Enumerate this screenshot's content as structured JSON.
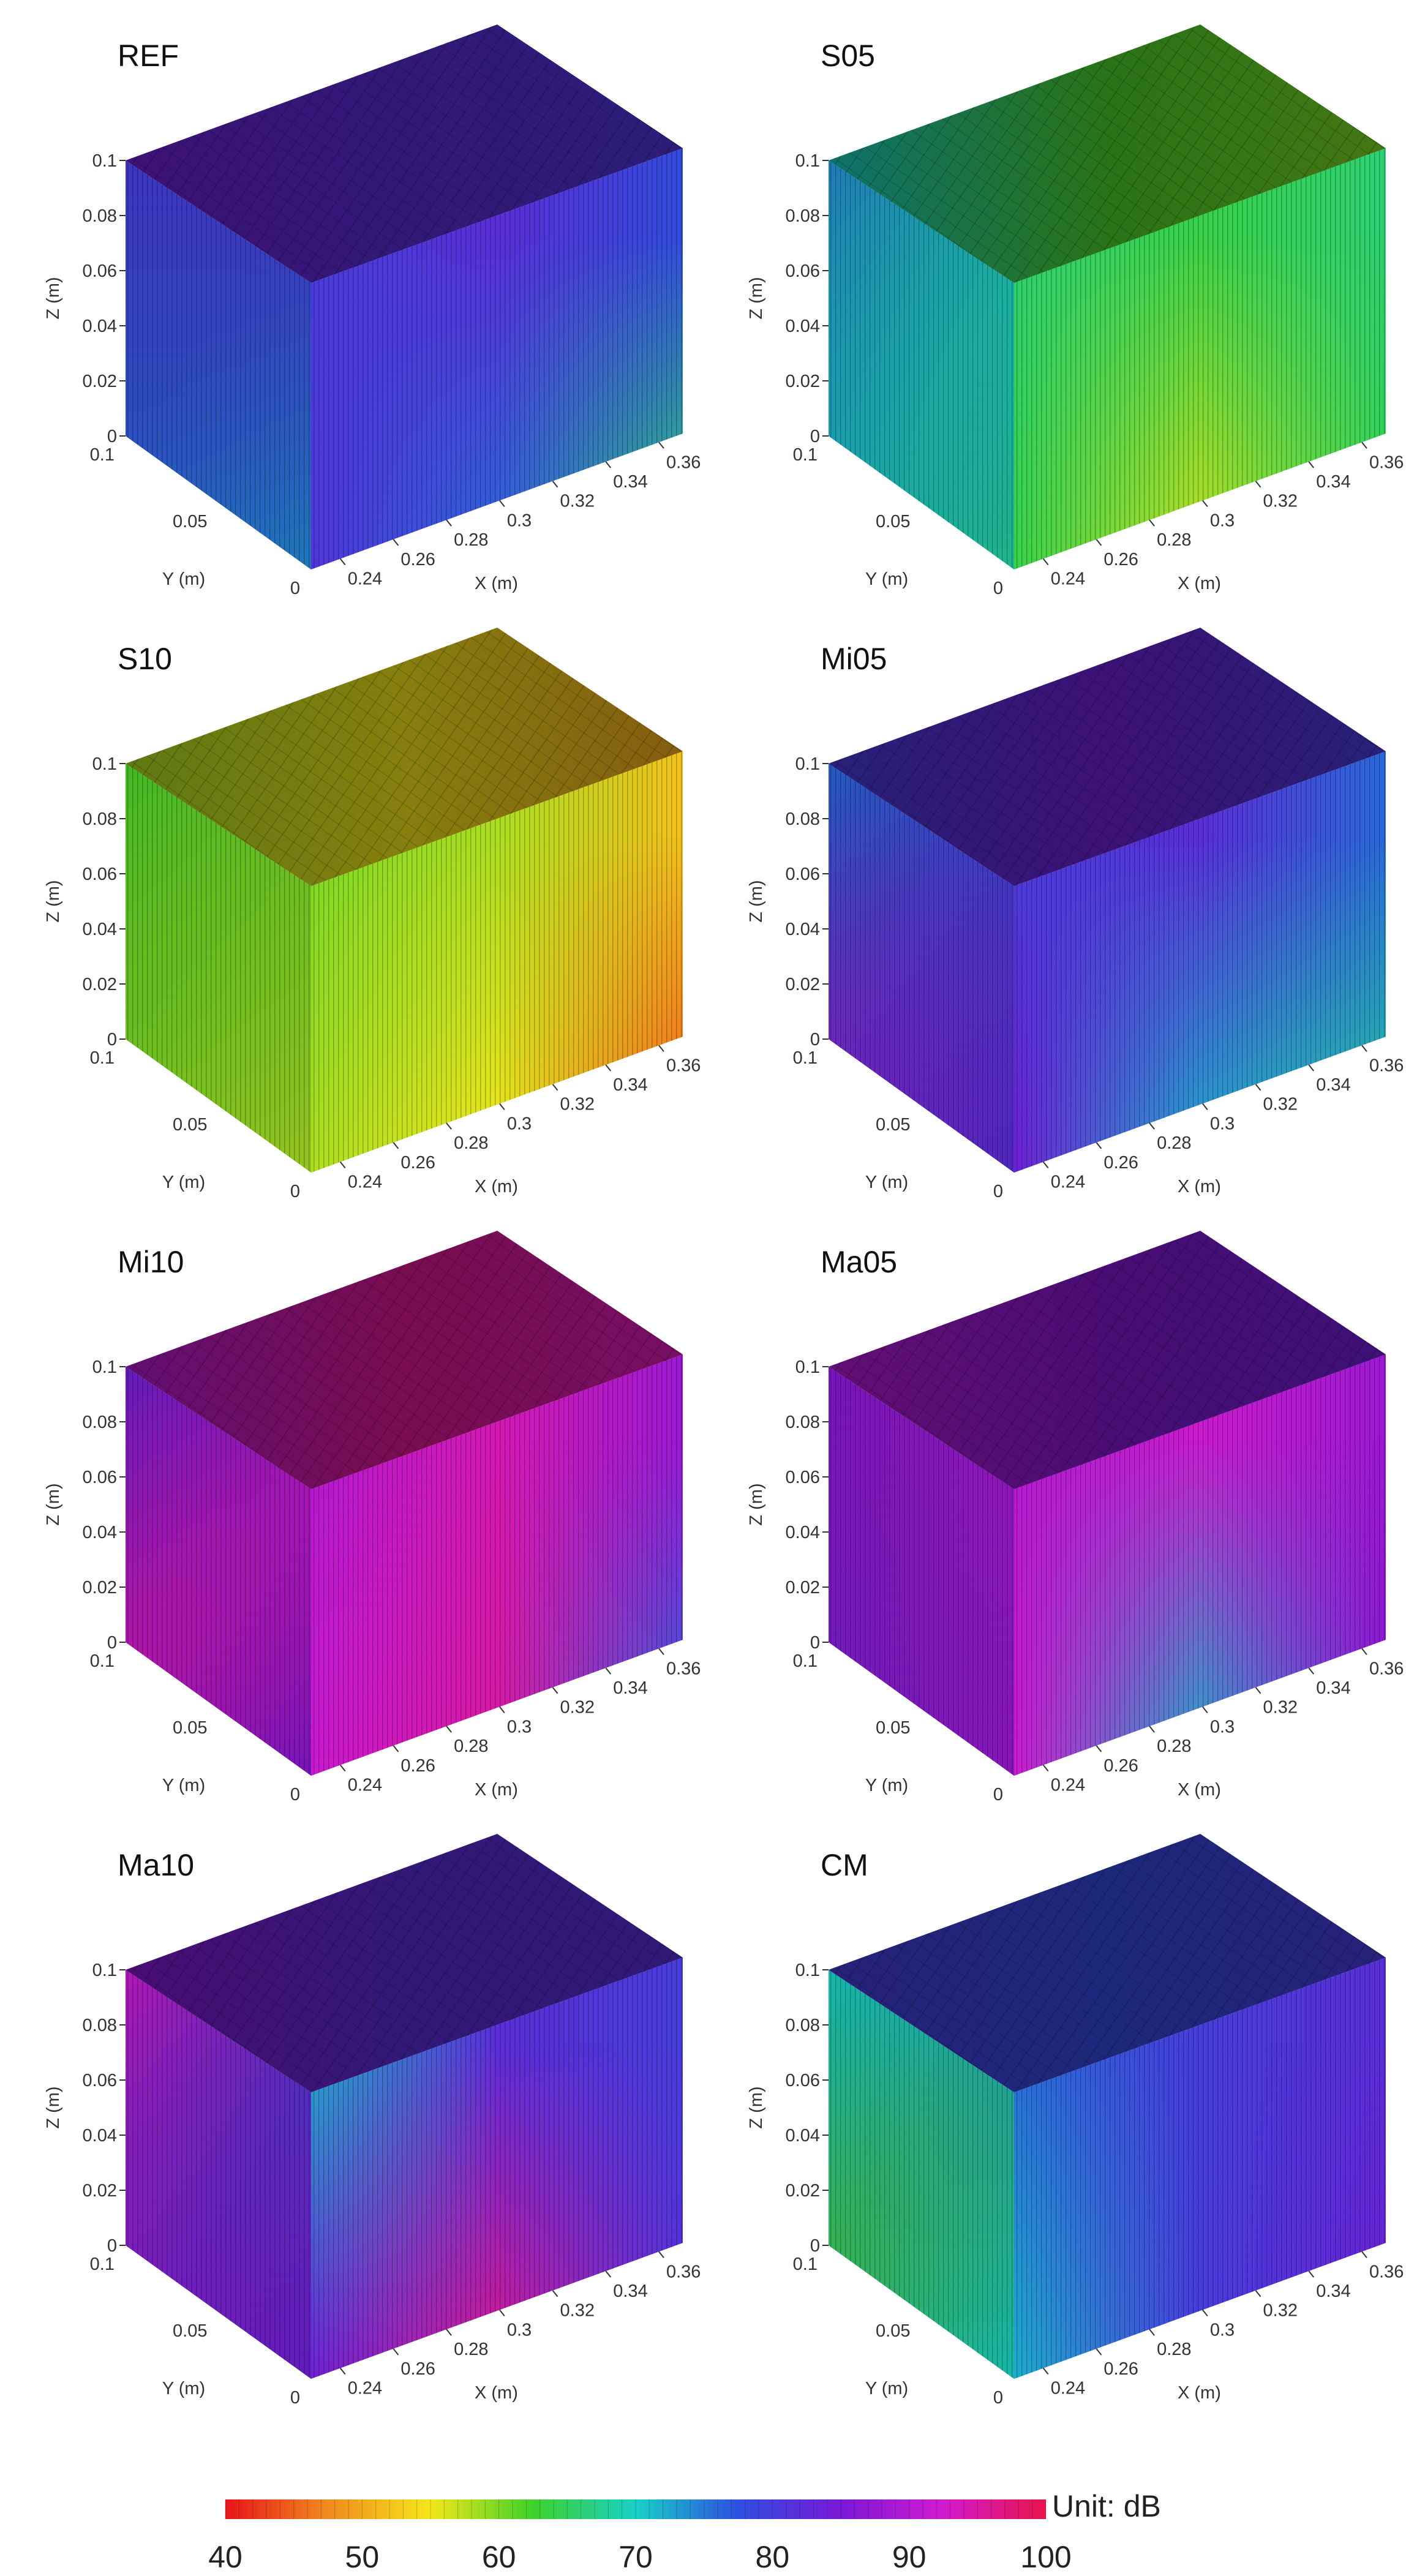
{
  "chart_data": {
    "type": "3d-surface",
    "axes": {
      "x": {
        "label": "X (m)",
        "ticks": [
          "0.24",
          "0.26",
          "0.28",
          "0.3",
          "0.32",
          "0.34",
          "0.36"
        ],
        "range": [
          0.23,
          0.37
        ]
      },
      "y": {
        "label": "Y (m)",
        "ticks": [
          "0",
          "0.05",
          "0.1"
        ],
        "range": [
          0,
          0.1
        ]
      },
      "z": {
        "label": "Z (m)",
        "ticks": [
          "0",
          "0.02",
          "0.04",
          "0.06",
          "0.08",
          "0.1"
        ],
        "range": [
          0,
          0.1
        ]
      }
    },
    "colorbar": {
      "unit": "Unit: dB",
      "ticks": [
        "40",
        "50",
        "60",
        "70",
        "80",
        "90",
        "100"
      ],
      "range": [
        40,
        100
      ],
      "colors": [
        "#e8141a",
        "#f28a1e",
        "#f4e61a",
        "#3fd12a",
        "#18d0c6",
        "#2d4fe0",
        "#7a18d6",
        "#d21ad0",
        "#e8144a"
      ]
    },
    "panels": [
      {
        "title": "REF",
        "x_tick_labels": [
          "0.24",
          "0.26",
          "0.28",
          "0.3",
          "0.32",
          "0.34",
          "0.36"
        ],
        "top": [
          84,
          82,
          81
        ],
        "front_top": [
          80,
          82,
          78
        ],
        "front_bottom": [
          81,
          76,
          66
        ],
        "side_top": [
          80,
          80
        ],
        "side_bottom": [
          76,
          74
        ]
      },
      {
        "title": "S05",
        "x_tick_labels": [
          "0.24",
          "0.26",
          "0.28",
          "0.3",
          "0.32",
          "0.34",
          "0.36"
        ],
        "top": [
          70,
          62,
          60
        ],
        "front_top": [
          66,
          64,
          66
        ],
        "front_bottom": [
          64,
          57,
          64
        ],
        "side_top": [
          74,
          69
        ],
        "side_bottom": [
          72,
          68
        ]
      },
      {
        "title": "S10",
        "x_tick_labels": [
          "0.24",
          "0.26",
          "0.28",
          "0.3",
          "0.32",
          "0.34",
          "0.36"
        ],
        "top": [
          58,
          55,
          50
        ],
        "front_top": [
          60,
          58,
          52
        ],
        "front_bottom": [
          58,
          55,
          44
        ],
        "side_top": [
          62,
          60
        ],
        "side_bottom": [
          60,
          58
        ]
      },
      {
        "title": "Mi05",
        "x_tick_labels": [
          "0.24",
          "0.26",
          "0.28",
          "0.3",
          "0.32",
          "0.34",
          "0.36"
        ],
        "top": [
          80,
          84,
          80
        ],
        "front_top": [
          80,
          82,
          76
        ],
        "front_bottom": [
          84,
          72,
          68
        ],
        "side_top": [
          76,
          78
        ],
        "side_bottom": [
          88,
          82
        ]
      },
      {
        "title": "Mi10",
        "x_tick_labels": [
          "0.24",
          "0.26",
          "0.28",
          "0.3",
          "0.32",
          "0.34",
          "0.36"
        ],
        "top": [
          90,
          96,
          94
        ],
        "front_top": [
          90,
          94,
          88
        ],
        "front_bottom": [
          92,
          95,
          76
        ],
        "side_top": [
          84,
          90
        ],
        "side_bottom": [
          94,
          86
        ]
      },
      {
        "title": "Ma05",
        "x_tick_labels": [
          "0.24",
          "0.26",
          "0.28",
          "0.3",
          "0.32",
          "0.34",
          "0.36"
        ],
        "top": [
          90,
          86,
          84
        ],
        "front_top": [
          90,
          92,
          88
        ],
        "front_bottom": [
          92,
          72,
          86
        ],
        "side_top": [
          86,
          90
        ],
        "side_bottom": [
          84,
          88
        ]
      },
      {
        "title": "Ma10",
        "x_tick_labels": [
          "0.24",
          "0.26",
          "0.28",
          "0.3",
          "0.32",
          "0.34",
          "0.36"
        ],
        "top": [
          86,
          82,
          82
        ],
        "front_top": [
          72,
          82,
          80
        ],
        "front_bottom": [
          84,
          96,
          82
        ],
        "side_top": [
          92,
          80
        ],
        "side_bottom": [
          88,
          84
        ]
      },
      {
        "title": "CM",
        "x_tick_labels": [
          "0.24",
          "0.26",
          "0.28",
          "0.3",
          "0.32",
          "0.34",
          "0.36"
        ],
        "top": [
          80,
          78,
          80
        ],
        "front_top": [
          76,
          80,
          82
        ],
        "front_bottom": [
          72,
          80,
          84
        ],
        "side_top": [
          70,
          72
        ],
        "side_bottom": [
          62,
          70
        ]
      }
    ]
  }
}
